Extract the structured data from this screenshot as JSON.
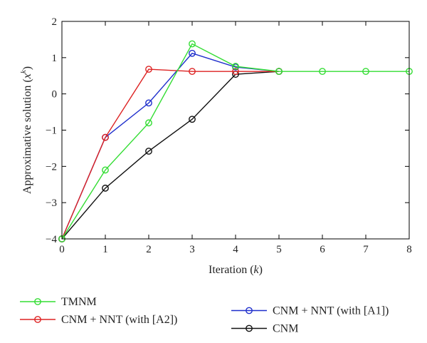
{
  "chart_data": {
    "type": "line",
    "xlabel": "Iteration (k)",
    "xlabel_parts": {
      "main": "Iteration (",
      "var": "k",
      "close": ")"
    },
    "ylabel": "Approximative solution (x^k)",
    "ylabel_parts": {
      "main": "Approximative solution (",
      "var": "x",
      "sup": "k",
      "close": ")"
    },
    "xlim": [
      0,
      8
    ],
    "ylim": [
      -4,
      2
    ],
    "xticks": [
      "0",
      "1",
      "2",
      "3",
      "4",
      "5",
      "6",
      "7",
      "8"
    ],
    "yticks": [
      "−4",
      "−3",
      "−2",
      "−1",
      "0",
      "1",
      "2"
    ],
    "grid": false,
    "legend_placement": "bottom",
    "series": [
      {
        "name": "TMNM",
        "color": "#33dd33",
        "x": [
          0,
          1,
          2,
          3,
          4,
          5,
          6,
          7,
          8
        ],
        "y": [
          -4.0,
          -2.1,
          -0.8,
          1.38,
          0.76,
          0.62,
          0.62,
          0.62,
          0.62
        ]
      },
      {
        "name": "CNM + NNT (with [A1])",
        "color": "#1f2fcc",
        "x": [
          0,
          1,
          2,
          3,
          4,
          5
        ],
        "y": [
          -4.0,
          -1.2,
          -0.25,
          1.12,
          0.74,
          0.62
        ]
      },
      {
        "name": "CNM + NNT (with [A2])",
        "color": "#dd2222",
        "x": [
          0,
          1,
          2,
          3,
          4,
          5
        ],
        "y": [
          -4.0,
          -1.2,
          0.68,
          0.62,
          0.62,
          0.62
        ]
      },
      {
        "name": "CNM",
        "color": "#111111",
        "x": [
          0,
          1,
          2,
          3,
          4,
          5
        ],
        "y": [
          -4.0,
          -2.6,
          -1.58,
          -0.7,
          0.54,
          0.62
        ]
      }
    ],
    "draw_order": [
      3,
      1,
      2,
      0
    ],
    "legend_layout": [
      {
        "series": 0,
        "col": 0,
        "row": 0
      },
      {
        "series": 2,
        "col": 0,
        "row": 1
      },
      {
        "series": 1,
        "col": 1,
        "row": 0.5
      },
      {
        "series": 3,
        "col": 1,
        "row": 1.5
      }
    ]
  }
}
